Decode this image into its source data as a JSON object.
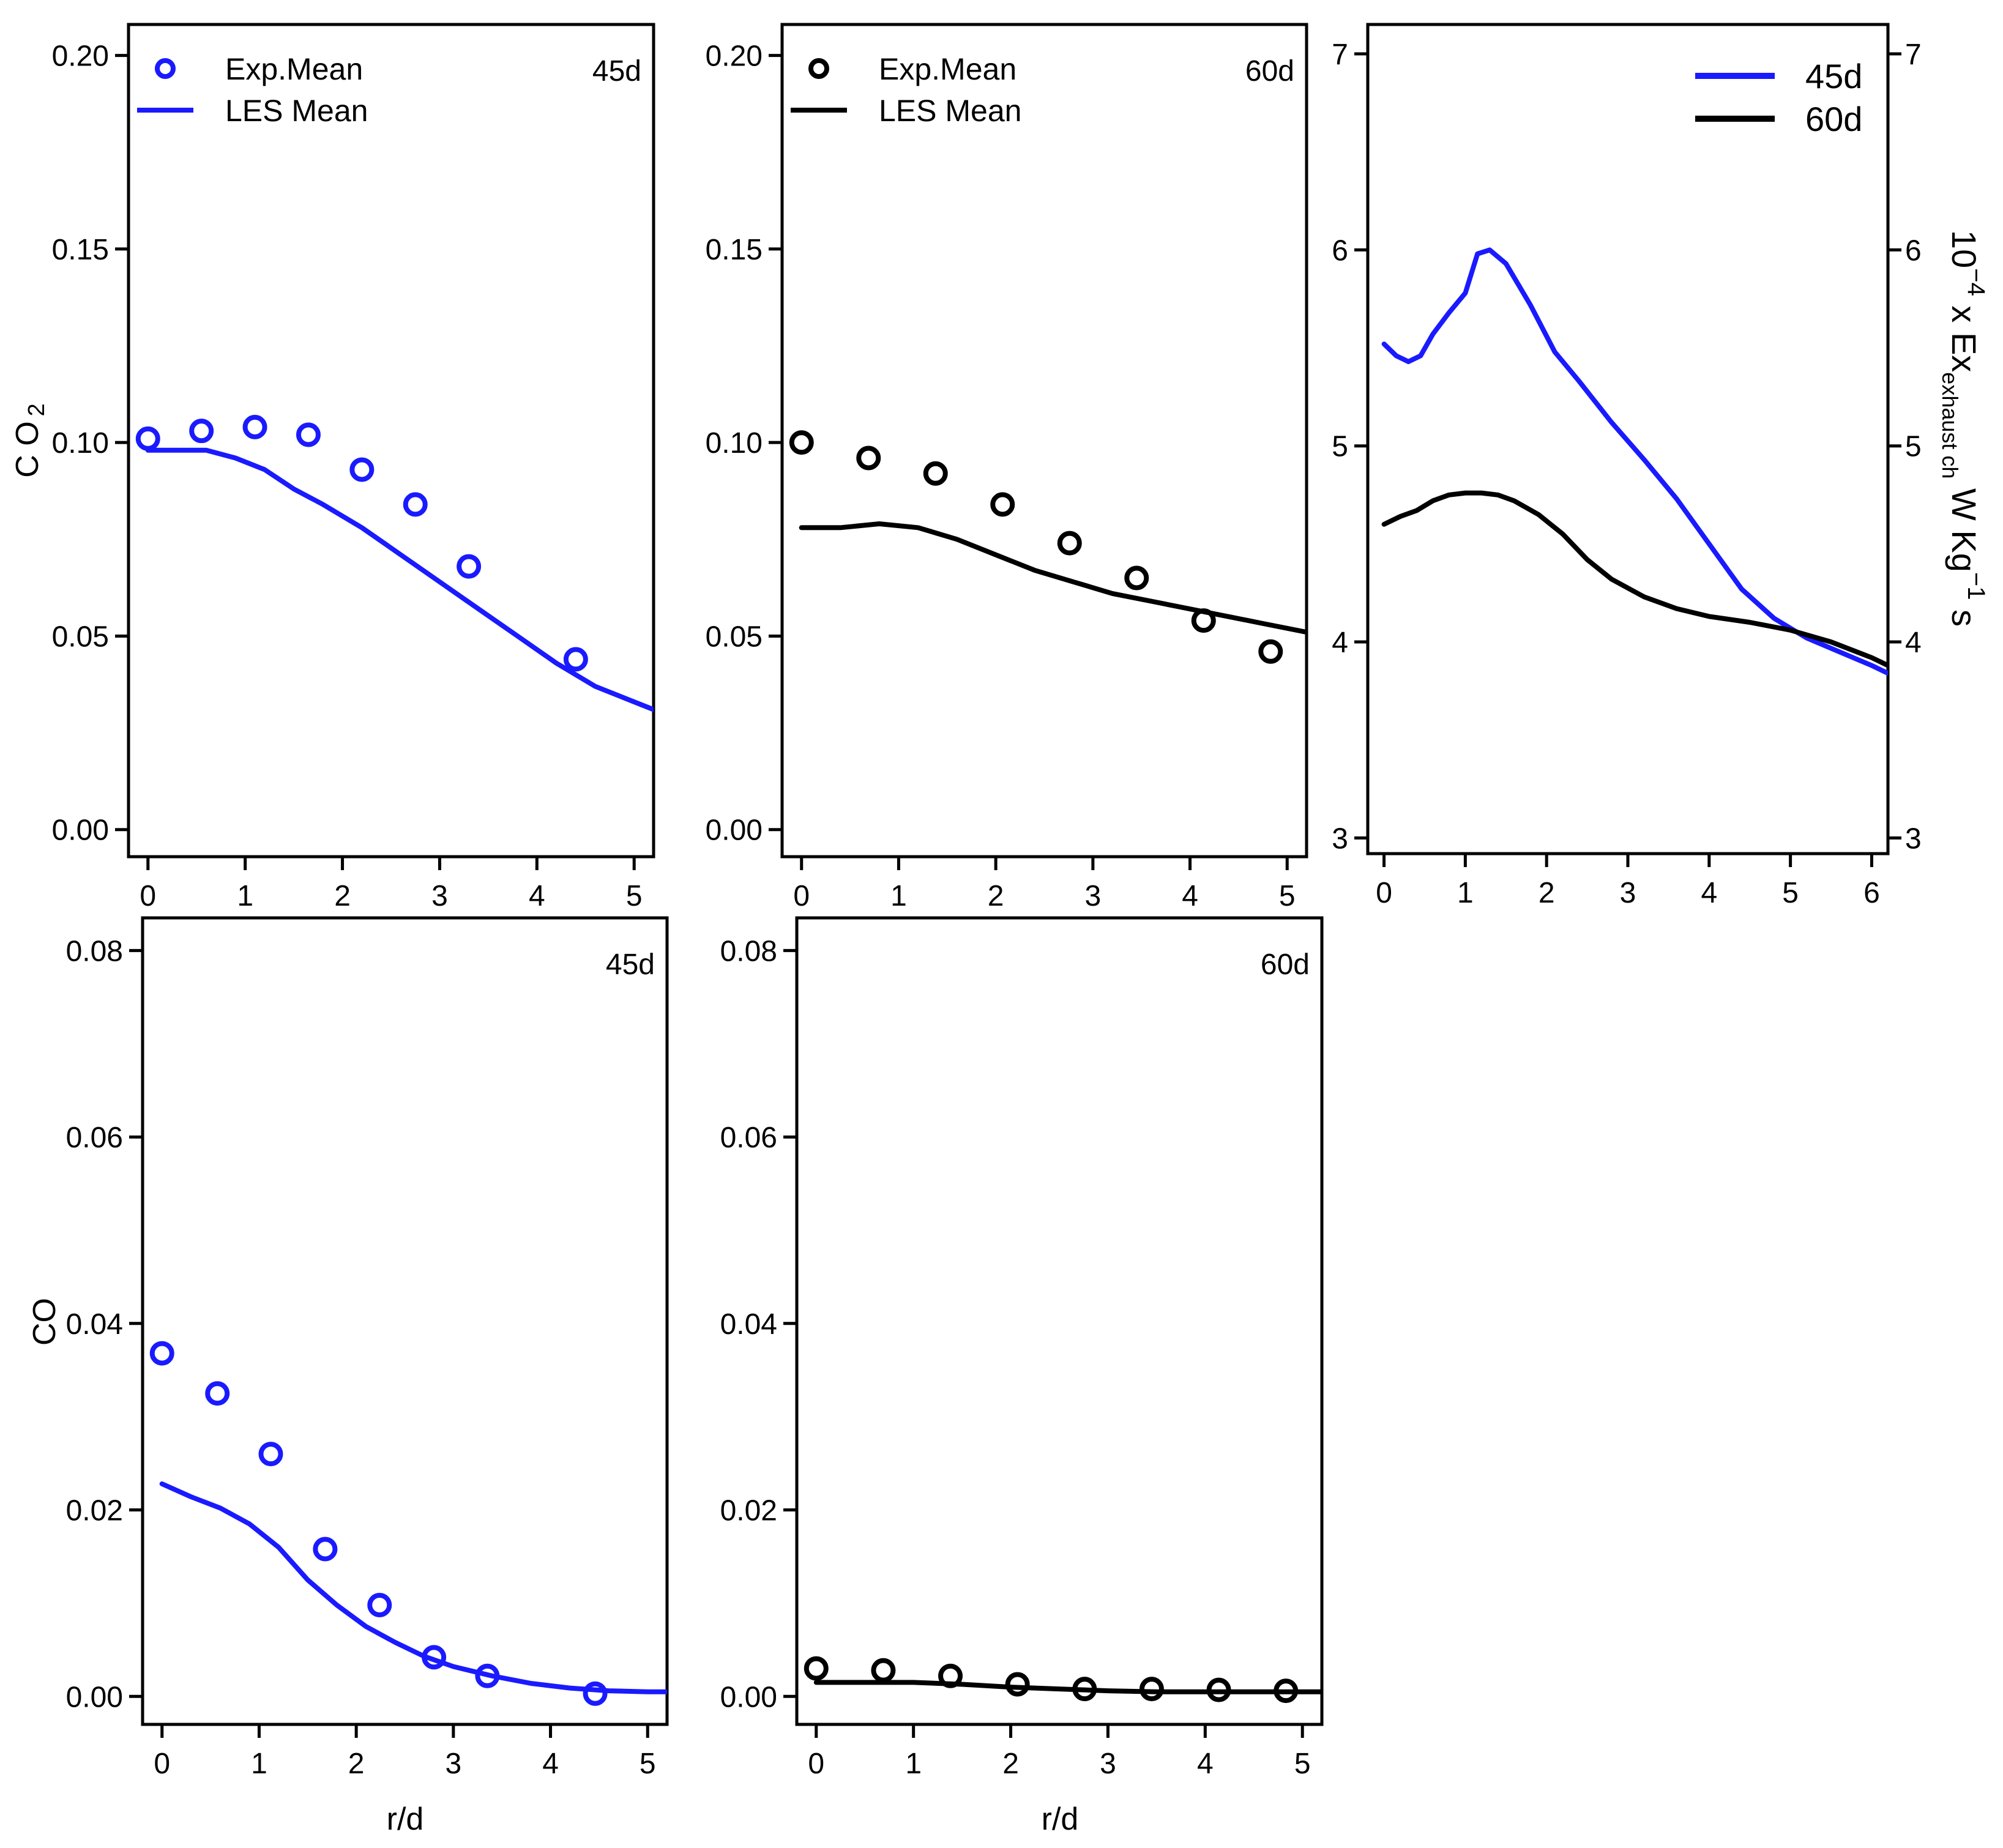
{
  "chart_data": [
    {
      "id": "co2-45d",
      "type": "line",
      "tag": "45d",
      "ylabel": "C O",
      "ylabel_sub": "2",
      "xlabel": "",
      "xlim": [
        -0.2,
        5.2
      ],
      "ylim": [
        -0.007,
        0.208
      ],
      "xticks": [
        "0",
        "1",
        "2",
        "3",
        "4",
        "5"
      ],
      "yticks": [
        "0.00",
        "0.05",
        "0.10",
        "0.15",
        "0.20"
      ],
      "legend": {
        "position": "top-left",
        "entries": [
          "Exp.Mean",
          "LES Mean"
        ]
      },
      "color": "#1a1aff",
      "series": [
        {
          "name": "Exp.Mean",
          "kind": "scatter",
          "x": [
            0.0,
            0.55,
            1.1,
            1.65,
            2.2,
            2.75,
            3.3,
            4.4
          ],
          "y": [
            0.101,
            0.103,
            0.104,
            0.102,
            0.093,
            0.084,
            0.068,
            0.044
          ]
        },
        {
          "name": "LES Mean",
          "kind": "line",
          "x": [
            0.0,
            0.3,
            0.6,
            0.9,
            1.2,
            1.5,
            1.8,
            2.2,
            2.6,
            3.0,
            3.4,
            3.8,
            4.2,
            4.6,
            5.0,
            5.2
          ],
          "y": [
            0.098,
            0.098,
            0.098,
            0.096,
            0.093,
            0.088,
            0.084,
            0.078,
            0.071,
            0.064,
            0.057,
            0.05,
            0.043,
            0.037,
            0.033,
            0.031
          ]
        }
      ]
    },
    {
      "id": "co2-60d",
      "type": "line",
      "tag": "60d",
      "ylabel": "",
      "xlabel": "",
      "xlim": [
        -0.2,
        5.2
      ],
      "ylim": [
        -0.007,
        0.208
      ],
      "xticks": [
        "0",
        "1",
        "2",
        "3",
        "4",
        "5"
      ],
      "yticks": [
        "0.00",
        "0.05",
        "0.10",
        "0.15",
        "0.20"
      ],
      "legend": {
        "position": "top-left",
        "entries": [
          "Exp.Mean",
          "LES Mean"
        ]
      },
      "color": "#000000",
      "series": [
        {
          "name": "Exp.Mean",
          "kind": "scatter",
          "x": [
            0.0,
            0.69,
            1.38,
            2.07,
            2.76,
            3.45,
            4.14,
            4.83
          ],
          "y": [
            0.1,
            0.096,
            0.092,
            0.084,
            0.074,
            0.065,
            0.054,
            0.046
          ]
        },
        {
          "name": "LES Mean",
          "kind": "line",
          "x": [
            0.0,
            0.4,
            0.8,
            1.2,
            1.6,
            2.0,
            2.4,
            2.8,
            3.2,
            3.6,
            4.0,
            4.4,
            4.8,
            5.2
          ],
          "y": [
            0.078,
            0.078,
            0.079,
            0.078,
            0.075,
            0.071,
            0.067,
            0.064,
            0.061,
            0.059,
            0.057,
            0.055,
            0.053,
            0.051
          ]
        }
      ]
    },
    {
      "id": "exergy",
      "type": "line",
      "tag": "",
      "ylabel": "10",
      "ylabel_exp": "−4",
      "ylabel_mid": " x Ex",
      "ylabel_sub": "exhaust ch",
      "ylabel_unit": " W Kg",
      "ylabel_unit_exp": "−1",
      "ylabel_tail": " s",
      "xlabel": "",
      "xlim": [
        -0.2,
        6.2
      ],
      "ylim": [
        2.92,
        7.15
      ],
      "xticks": [
        "0",
        "1",
        "2",
        "3",
        "4",
        "5",
        "6"
      ],
      "yticks": [
        "3",
        "4",
        "5",
        "6",
        "7"
      ],
      "legend": {
        "position": "top-right",
        "entries": [
          "45d",
          "60d"
        ]
      },
      "series": [
        {
          "name": "45d",
          "kind": "line",
          "color": "#1a1aff",
          "x": [
            0.0,
            0.15,
            0.3,
            0.45,
            0.6,
            0.8,
            1.0,
            1.15,
            1.3,
            1.5,
            1.8,
            2.1,
            2.4,
            2.8,
            3.2,
            3.6,
            4.0,
            4.4,
            4.8,
            5.2,
            5.6,
            6.0,
            6.2
          ],
          "y": [
            5.52,
            5.46,
            5.43,
            5.46,
            5.57,
            5.68,
            5.78,
            5.98,
            6.0,
            5.93,
            5.72,
            5.48,
            5.33,
            5.12,
            4.93,
            4.73,
            4.5,
            4.27,
            4.12,
            4.02,
            3.95,
            3.88,
            3.84
          ]
        },
        {
          "name": "60d",
          "kind": "line",
          "color": "#000000",
          "x": [
            0.0,
            0.2,
            0.4,
            0.6,
            0.8,
            1.0,
            1.2,
            1.4,
            1.6,
            1.9,
            2.2,
            2.5,
            2.8,
            3.2,
            3.6,
            4.0,
            4.5,
            5.0,
            5.5,
            6.0,
            6.2
          ],
          "y": [
            4.6,
            4.64,
            4.67,
            4.72,
            4.75,
            4.76,
            4.76,
            4.75,
            4.72,
            4.65,
            4.55,
            4.42,
            4.32,
            4.23,
            4.17,
            4.13,
            4.1,
            4.06,
            4.0,
            3.92,
            3.88
          ]
        }
      ]
    },
    {
      "id": "co-45d",
      "type": "line",
      "tag": "45d",
      "ylabel": "CO",
      "xlabel": "r/d",
      "xlim": [
        -0.2,
        5.2
      ],
      "ylim": [
        -0.003,
        0.0835
      ],
      "xticks": [
        "0",
        "1",
        "2",
        "3",
        "4",
        "5"
      ],
      "yticks": [
        "0.00",
        "0.02",
        "0.04",
        "0.06",
        "0.08"
      ],
      "color": "#1a1aff",
      "series": [
        {
          "name": "Exp.Mean",
          "kind": "scatter",
          "x": [
            0.0,
            0.57,
            1.12,
            1.68,
            2.24,
            2.8,
            3.35,
            4.46
          ],
          "y": [
            0.0368,
            0.0325,
            0.026,
            0.0158,
            0.0098,
            0.0042,
            0.0022,
            0.0003
          ]
        },
        {
          "name": "LES Mean",
          "kind": "line",
          "x": [
            0.0,
            0.3,
            0.6,
            0.9,
            1.2,
            1.5,
            1.8,
            2.1,
            2.4,
            2.7,
            3.0,
            3.4,
            3.8,
            4.2,
            4.6,
            5.0,
            5.2
          ],
          "y": [
            0.0228,
            0.0214,
            0.0202,
            0.0185,
            0.016,
            0.0125,
            0.0098,
            0.0075,
            0.0058,
            0.0043,
            0.0032,
            0.0022,
            0.0014,
            0.0009,
            0.0006,
            0.0005,
            0.0005
          ]
        }
      ]
    },
    {
      "id": "co-60d",
      "type": "line",
      "tag": "60d",
      "ylabel": "",
      "xlabel": "r/d",
      "xlim": [
        -0.2,
        5.2
      ],
      "ylim": [
        -0.003,
        0.0835
      ],
      "xticks": [
        "0",
        "1",
        "2",
        "3",
        "4",
        "5"
      ],
      "yticks": [
        "0.00",
        "0.02",
        "0.04",
        "0.06",
        "0.08"
      ],
      "color": "#000000",
      "series": [
        {
          "name": "Exp.Mean",
          "kind": "scatter",
          "x": [
            0.0,
            0.69,
            1.38,
            2.07,
            2.76,
            3.45,
            4.14,
            4.83
          ],
          "y": [
            0.003,
            0.0028,
            0.0022,
            0.0013,
            0.0008,
            0.0008,
            0.0007,
            0.0006
          ]
        },
        {
          "name": "LES Mean",
          "kind": "line",
          "x": [
            0.0,
            0.5,
            1.0,
            1.5,
            2.0,
            2.5,
            3.0,
            3.5,
            4.0,
            4.5,
            5.0,
            5.2
          ],
          "y": [
            0.0015,
            0.0015,
            0.0015,
            0.0013,
            0.001,
            0.0008,
            0.0006,
            0.0005,
            0.0005,
            0.0005,
            0.0005,
            0.0005
          ]
        }
      ]
    }
  ]
}
